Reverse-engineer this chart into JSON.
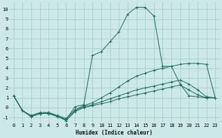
{
  "title": "",
  "xlabel": "Humidex (Indice chaleur)",
  "bg_color": "#cce8e8",
  "grid_color": "#aacccc",
  "line_color": "#1a6b5a",
  "xlim": [
    -0.5,
    23.5
  ],
  "ylim": [
    -1.5,
    10.7
  ],
  "xticks": [
    0,
    1,
    2,
    3,
    4,
    5,
    6,
    7,
    8,
    9,
    10,
    11,
    12,
    13,
    14,
    15,
    16,
    17,
    18,
    19,
    20,
    21,
    22,
    23
  ],
  "yticks": [
    -1,
    0,
    1,
    2,
    3,
    4,
    5,
    6,
    7,
    8,
    9,
    10
  ],
  "series": [
    {
      "x": [
        0,
        1,
        2,
        3,
        4,
        5,
        6,
        7,
        8,
        9,
        10,
        11,
        12,
        13,
        14,
        15,
        16,
        17,
        18,
        19,
        20,
        21,
        22,
        23
      ],
      "y": [
        1.2,
        -0.3,
        -0.9,
        -0.6,
        -0.5,
        -0.9,
        -1.2,
        0.1,
        0.3,
        5.3,
        5.7,
        6.7,
        7.7,
        9.5,
        10.2,
        10.2,
        9.3,
        4.2,
        4.2,
        2.4,
        1.2,
        1.1,
        1.0,
        1.0
      ]
    },
    {
      "x": [
        0,
        1,
        2,
        3,
        4,
        5,
        6,
        7,
        8,
        9,
        10,
        11,
        12,
        13,
        14,
        15,
        16,
        17,
        18,
        19,
        20,
        21,
        22,
        23
      ],
      "y": [
        1.2,
        -0.3,
        -0.8,
        -0.5,
        -0.5,
        -0.8,
        -1.1,
        -0.2,
        0.2,
        0.5,
        1.0,
        1.5,
        2.1,
        2.7,
        3.2,
        3.5,
        3.8,
        4.0,
        4.2,
        4.4,
        4.5,
        4.5,
        4.4,
        1.0
      ]
    },
    {
      "x": [
        0,
        1,
        2,
        3,
        4,
        5,
        6,
        7,
        8,
        9,
        10,
        11,
        12,
        13,
        14,
        15,
        16,
        17,
        18,
        19,
        20,
        21,
        22,
        23
      ],
      "y": [
        1.2,
        -0.3,
        -0.9,
        -0.6,
        -0.6,
        -0.9,
        -1.3,
        -0.3,
        0.1,
        0.3,
        0.6,
        0.9,
        1.2,
        1.5,
        1.8,
        2.0,
        2.2,
        2.4,
        2.6,
        2.8,
        2.4,
        1.8,
        1.1,
        1.0
      ]
    },
    {
      "x": [
        0,
        1,
        2,
        3,
        4,
        5,
        6,
        7,
        8,
        9,
        10,
        11,
        12,
        13,
        14,
        15,
        16,
        17,
        18,
        19,
        20,
        21,
        22,
        23
      ],
      "y": [
        1.2,
        -0.3,
        -0.9,
        -0.6,
        -0.6,
        -0.9,
        -1.3,
        -0.4,
        0.0,
        0.2,
        0.4,
        0.6,
        0.9,
        1.1,
        1.3,
        1.5,
        1.7,
        1.9,
        2.1,
        2.3,
        1.8,
        1.3,
        1.0,
        1.0
      ]
    }
  ]
}
